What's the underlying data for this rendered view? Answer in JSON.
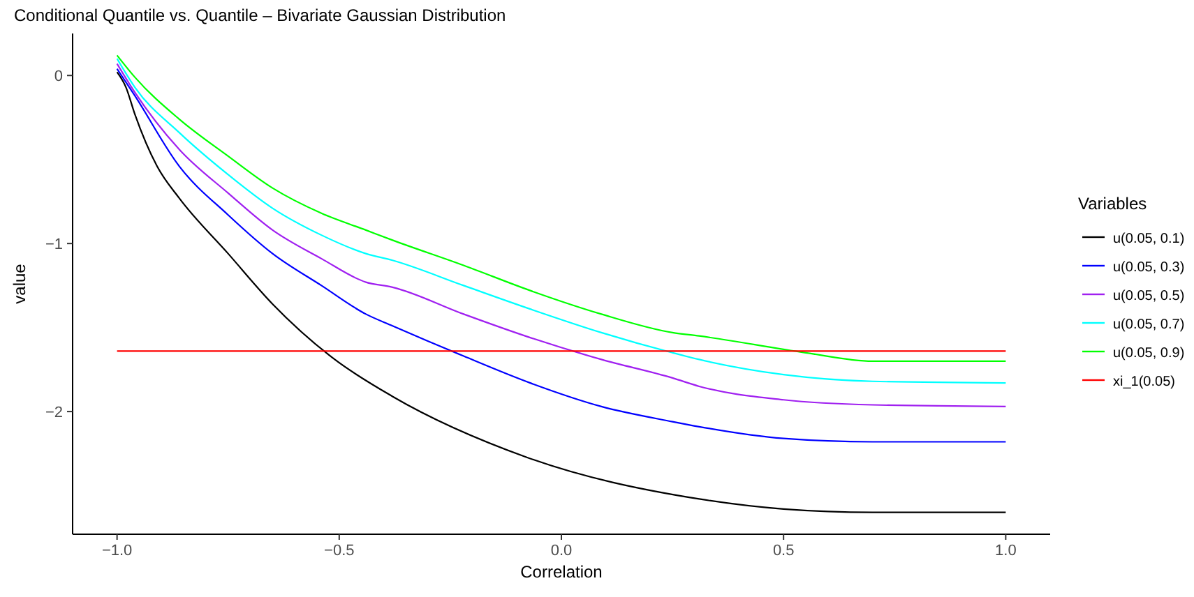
{
  "chart_data": {
    "type": "line",
    "title": "Conditional Quantile vs. Quantile – Bivariate Gaussian Distribution",
    "xlabel": "Correlation",
    "ylabel": "value",
    "legend_title": "Variables",
    "legend": "right",
    "grid": false,
    "marker": "none",
    "line_style": "solid",
    "xlim": [
      -1.1,
      1.1
    ],
    "xticks": [
      {
        "value": -1,
        "label": "−1.0"
      },
      {
        "value": -0.5,
        "label": "−0.5"
      },
      {
        "value": 0,
        "label": "0.0"
      },
      {
        "value": 0.5,
        "label": "0.5"
      },
      {
        "value": 1,
        "label": "1.0"
      }
    ],
    "ylim": [
      -2.73,
      0.25
    ],
    "yticks": [
      {
        "value": -2,
        "label": "−2"
      },
      {
        "value": -1,
        "label": "−1"
      },
      0
    ],
    "series": [
      {
        "name": "u(0.05, 0.1)",
        "color": "#000000",
        "x": [
          -1,
          -0.98,
          -0.96,
          -0.91,
          -0.86,
          -0.75,
          -0.65,
          -0.51,
          -0.38,
          -0.08,
          0.31,
          0.5,
          0.7,
          1
        ],
        "values": [
          0.02,
          -0.07,
          -0.23,
          -0.54,
          -0.73,
          -1.06,
          -1.36,
          -1.69,
          -1.91,
          -2.27,
          -2.52,
          -2.58,
          -2.6,
          -2.6
        ]
      },
      {
        "name": "u(0.05, 0.3)",
        "color": "#0000ff",
        "x": [
          -1,
          -0.96,
          -0.86,
          -0.75,
          -0.65,
          -0.54,
          -0.44,
          -0.38,
          -0.22,
          -0.07,
          0.09,
          0.25,
          0.31,
          0.5,
          0.7,
          1
        ],
        "values": [
          0.04,
          -0.12,
          -0.54,
          -0.83,
          -1.06,
          -1.25,
          -1.42,
          -1.49,
          -1.67,
          -1.83,
          -1.97,
          -2.06,
          -2.09,
          -2.16,
          -2.18,
          -2.18
        ]
      },
      {
        "name": "u(0.05, 0.5)",
        "color": "#a020f0",
        "x": [
          -1,
          -0.96,
          -0.86,
          -0.75,
          -0.65,
          -0.54,
          -0.44,
          -0.38,
          -0.22,
          -0.07,
          0.09,
          0.25,
          0.31,
          0.5,
          0.7,
          1
        ],
        "values": [
          0.07,
          -0.1,
          -0.44,
          -0.7,
          -0.92,
          -1.09,
          -1.23,
          -1.26,
          -1.42,
          -1.56,
          -1.69,
          -1.8,
          -1.85,
          -1.93,
          -1.96,
          -1.97
        ]
      },
      {
        "name": "u(0.05, 0.7)",
        "color": "#00ffff",
        "x": [
          -1,
          -0.96,
          -0.86,
          -0.75,
          -0.65,
          -0.54,
          -0.44,
          -0.38,
          -0.22,
          -0.07,
          0.09,
          0.25,
          0.31,
          0.5,
          0.7,
          1
        ],
        "values": [
          0.1,
          -0.07,
          -0.34,
          -0.59,
          -0.79,
          -0.95,
          -1.06,
          -1.1,
          -1.25,
          -1.39,
          -1.53,
          -1.65,
          -1.69,
          -1.78,
          -1.82,
          -1.83
        ]
      },
      {
        "name": "u(0.05, 0.9)",
        "color": "#00ff00",
        "x": [
          -1,
          -0.96,
          -0.86,
          -0.75,
          -0.65,
          -0.54,
          -0.44,
          -0.38,
          -0.22,
          -0.07,
          0.09,
          0.25,
          0.31,
          0.55,
          0.7,
          1
        ],
        "values": [
          0.12,
          -0.01,
          -0.26,
          -0.48,
          -0.67,
          -0.82,
          -0.92,
          -0.98,
          -1.13,
          -1.28,
          -1.42,
          -1.53,
          -1.55,
          -1.65,
          -1.7,
          -1.7
        ]
      },
      {
        "name": "xi_1(0.05)",
        "color": "#ff0000",
        "x": [
          -1,
          1
        ],
        "values": [
          -1.64,
          -1.64
        ]
      }
    ]
  }
}
